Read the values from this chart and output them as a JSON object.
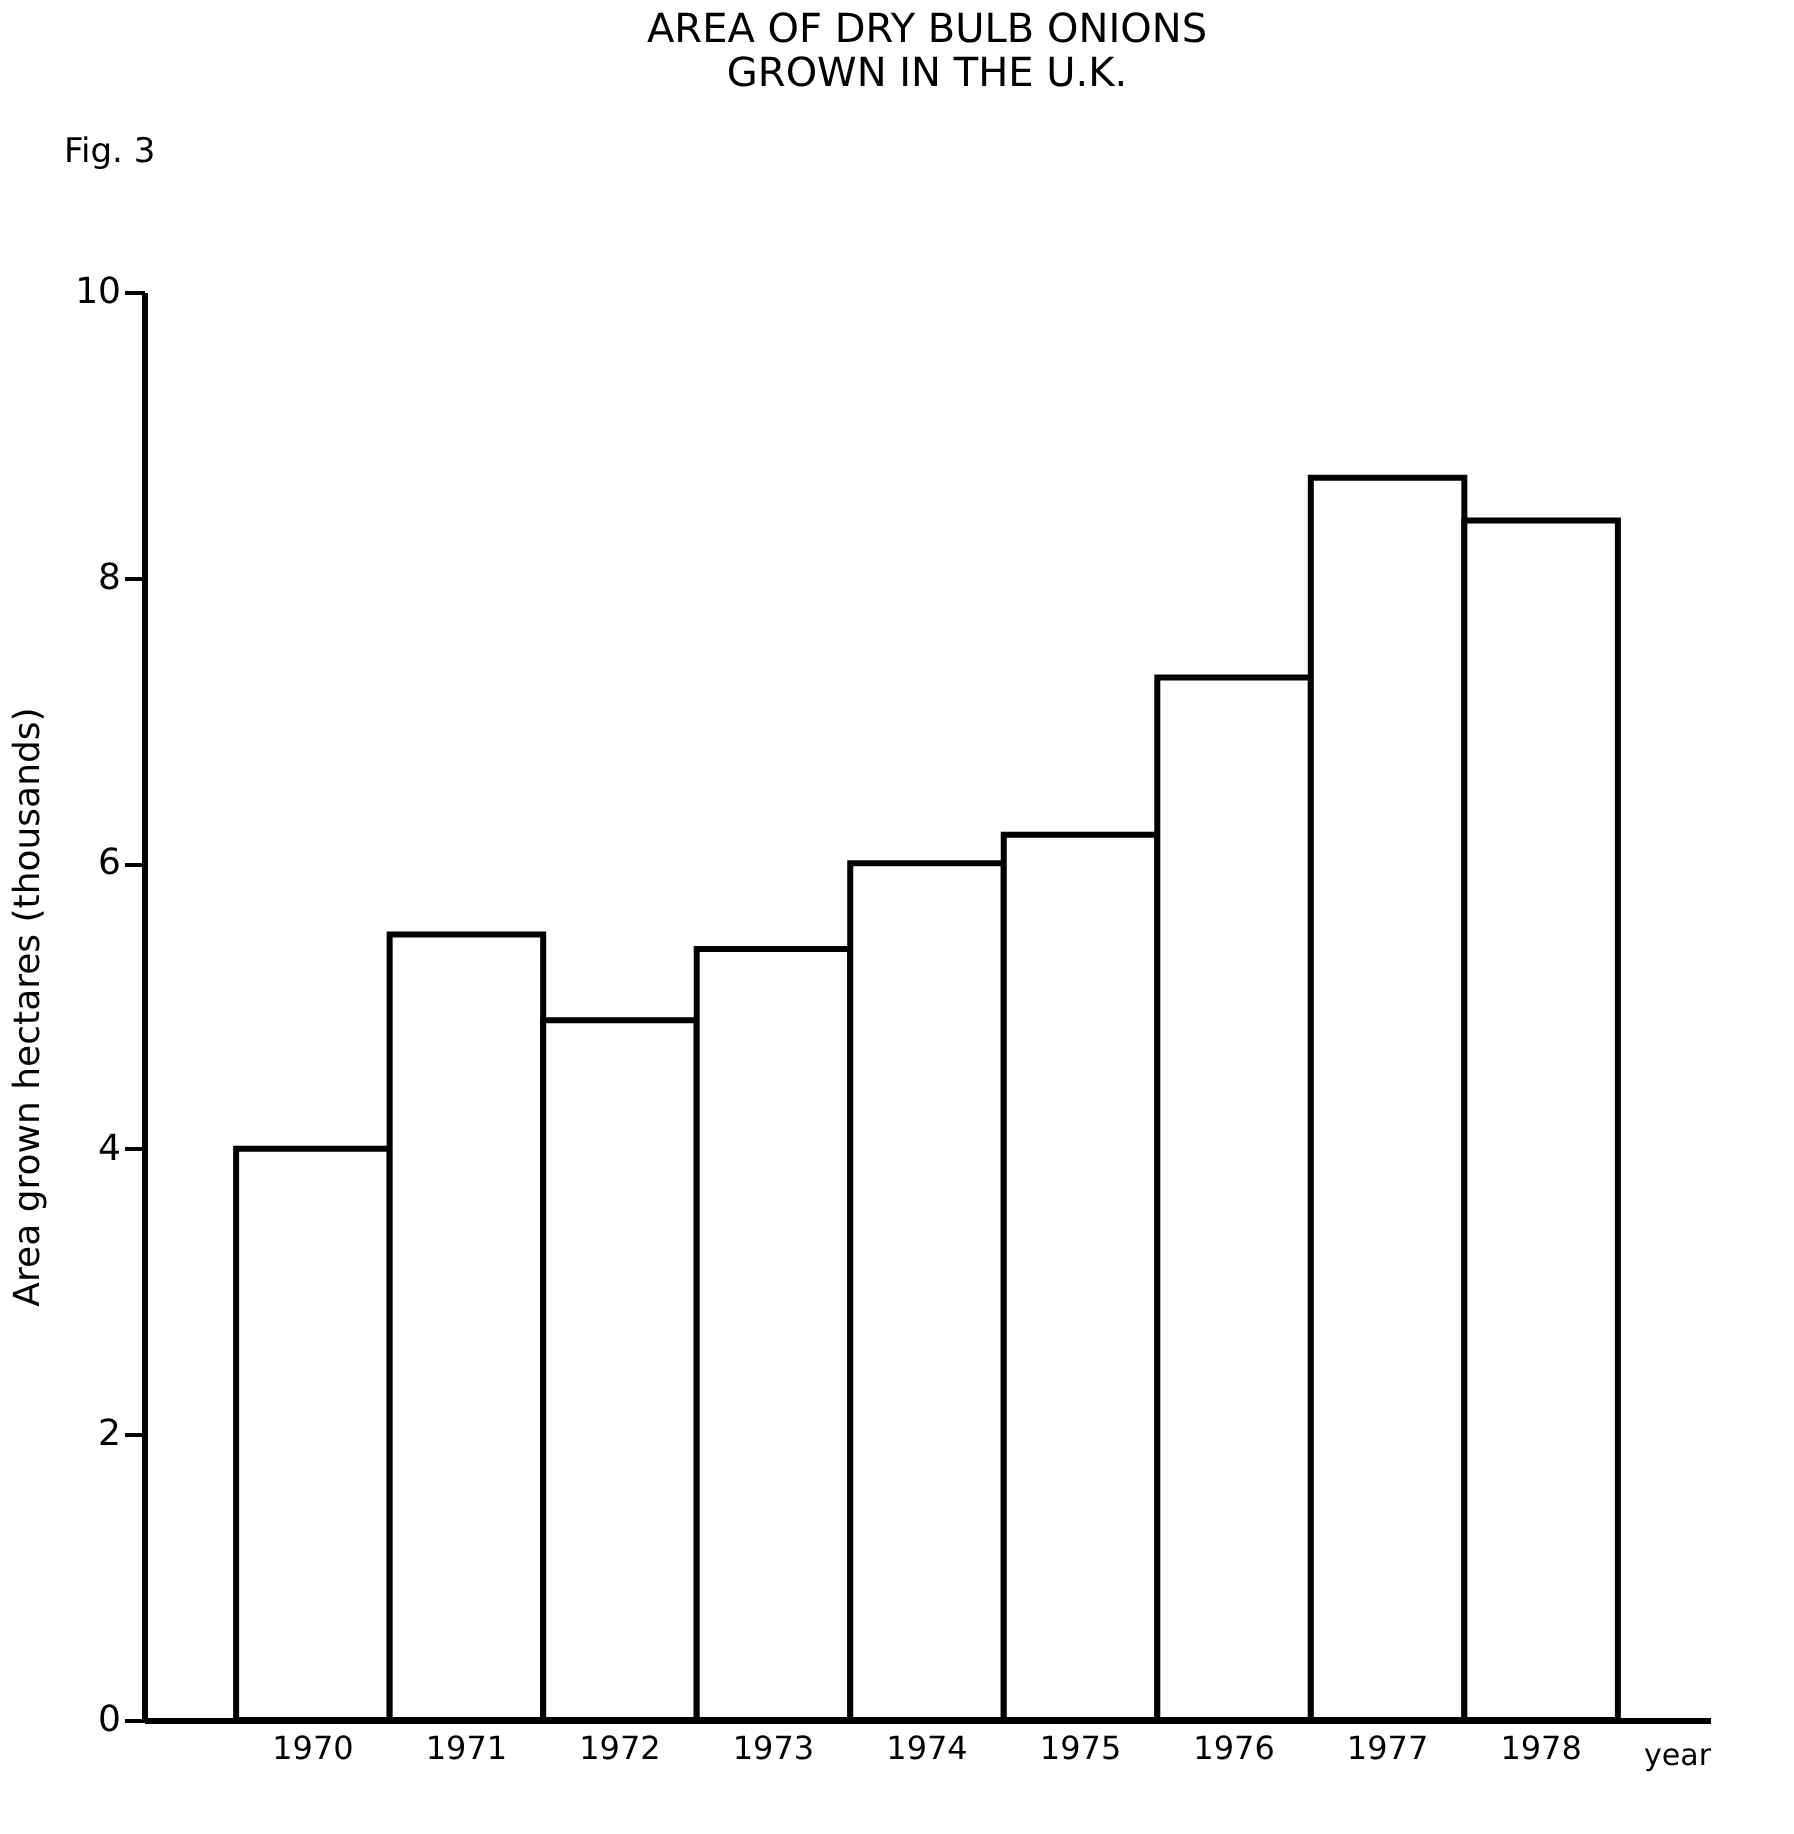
{
  "chart_data": {
    "type": "bar",
    "title": [
      "AREA OF DRY BULB ONIONS",
      "GROWN IN THE U.K."
    ],
    "annotations": [
      "Fig. 3"
    ],
    "xlabel": "year",
    "ylabel": "Area grown hectares (thousands)",
    "categories": [
      "1970",
      "1971",
      "1972",
      "1973",
      "1974",
      "1975",
      "1976",
      "1977",
      "1978"
    ],
    "values": [
      4.0,
      5.5,
      4.9,
      5.4,
      6.0,
      6.2,
      7.3,
      8.7,
      8.4
    ],
    "color": "#ffffff",
    "ylim": [
      0,
      10
    ],
    "yticks": [
      0,
      2,
      4,
      6,
      8,
      10
    ],
    "grid": false
  }
}
